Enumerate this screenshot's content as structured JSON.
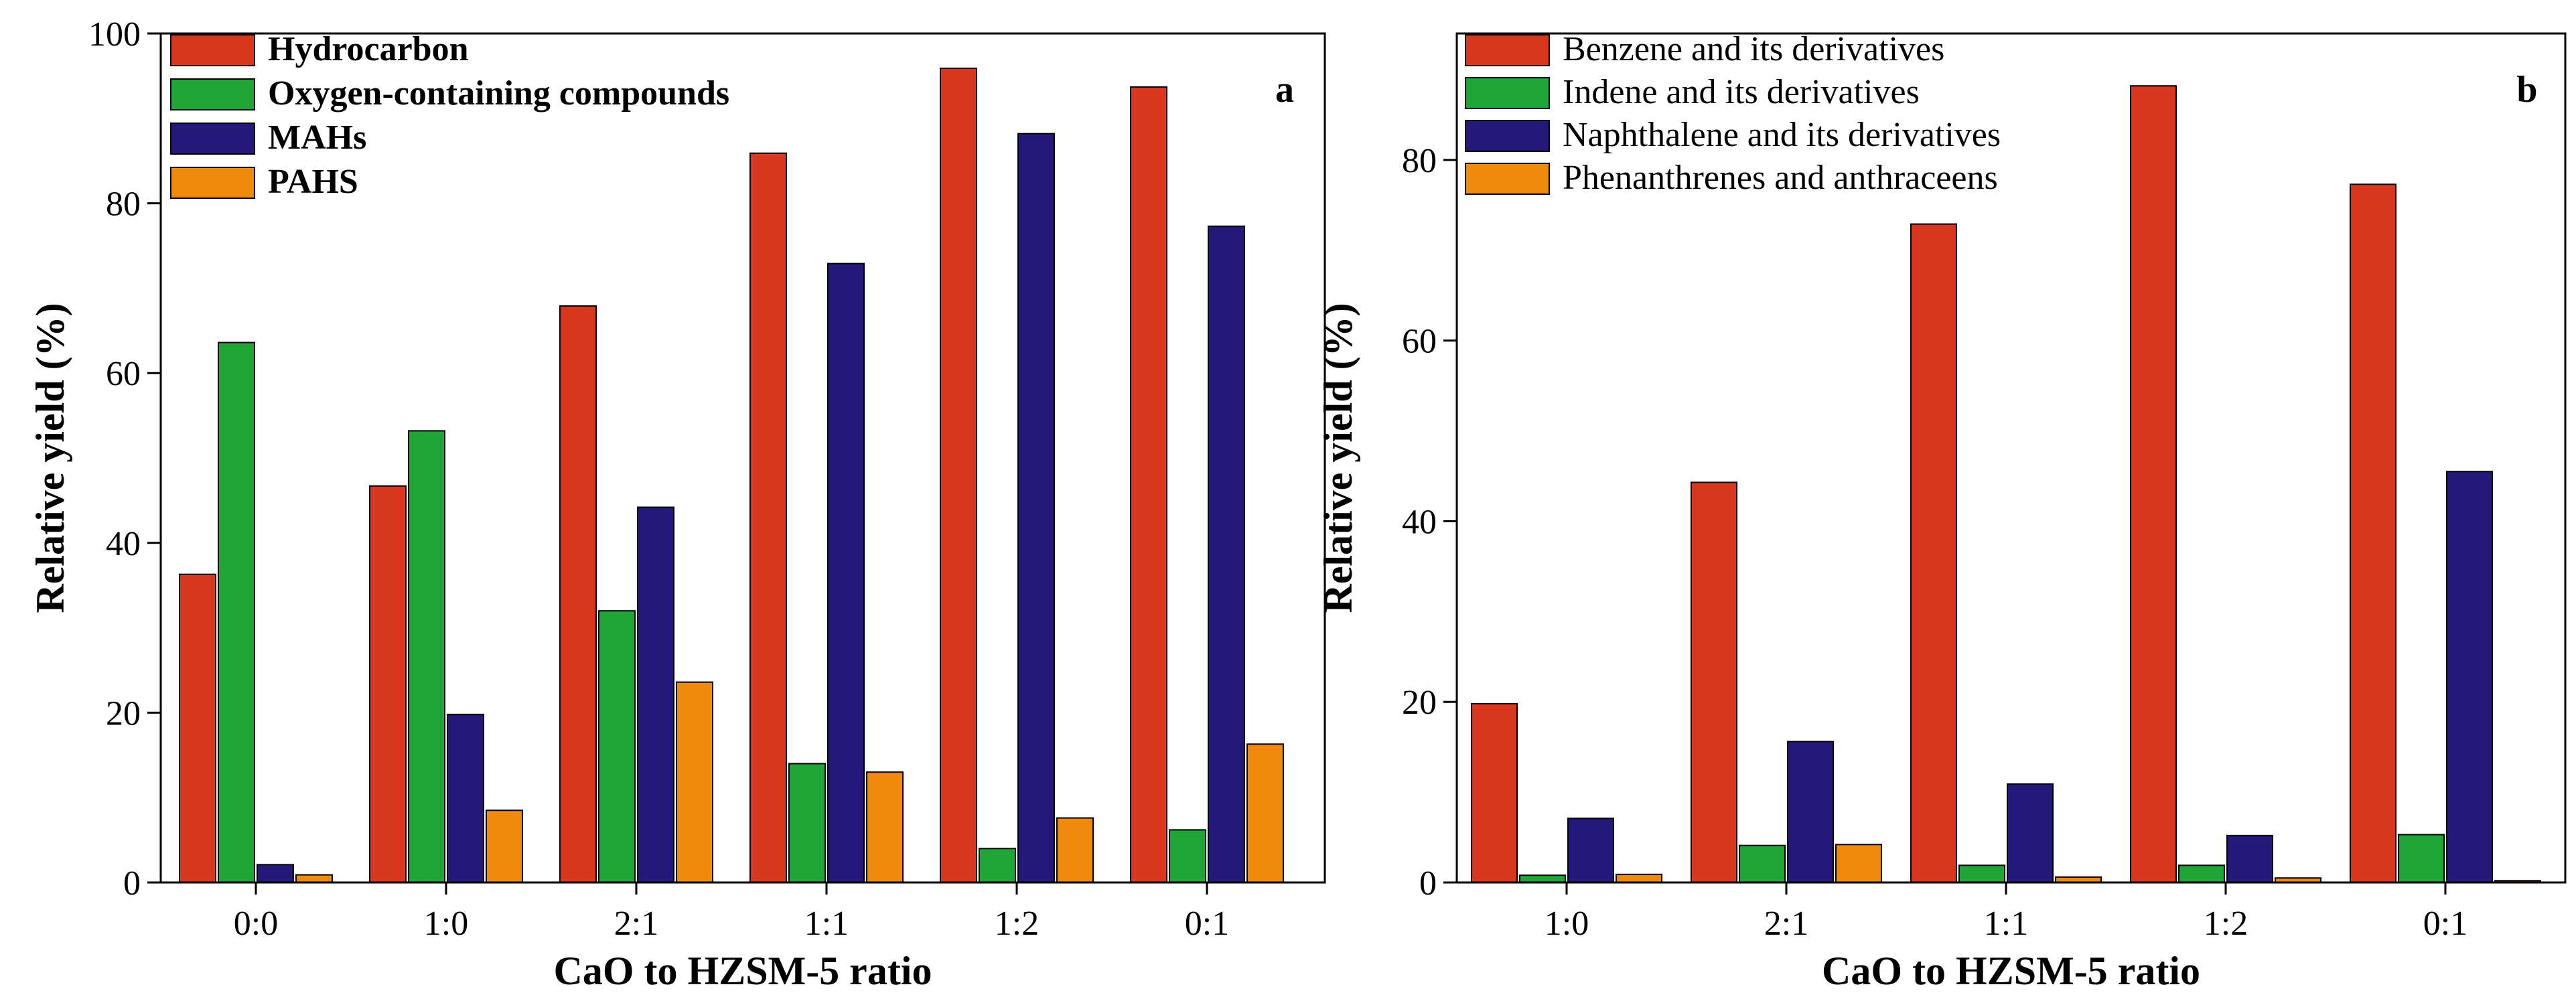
{
  "chart_data": [
    {
      "type": "bar",
      "panel": "a",
      "xlabel": "CaO to HZSM-5 ratio",
      "ylabel": "Relative yield (%)",
      "ylim": [
        0,
        100
      ],
      "yticks": [
        0,
        20,
        40,
        60,
        80,
        100
      ],
      "categories": [
        "0:0",
        "1:0",
        "2:1",
        "1:1",
        "1:2",
        "0:1"
      ],
      "series": [
        {
          "name": "Hydrocarbon",
          "color": "#d9381e",
          "values": [
            36.3,
            46.7,
            67.9,
            85.9,
            95.9,
            93.7
          ]
        },
        {
          "name": "Oxygen-containing compounds",
          "color": "#1fa637",
          "values": [
            63.6,
            53.2,
            32.0,
            14.0,
            4.0,
            6.2
          ]
        },
        {
          "name": "MAHs",
          "color": "#24197a",
          "values": [
            2.1,
            19.8,
            44.2,
            72.9,
            88.2,
            77.3
          ]
        },
        {
          "name": "PAHS",
          "color": "#f08a0c",
          "values": [
            0.9,
            8.5,
            23.6,
            13.0,
            7.6,
            16.3
          ]
        }
      ],
      "legend_position": "top-left"
    },
    {
      "type": "bar",
      "panel": "b",
      "xlabel": "CaO to HZSM-5 ratio",
      "ylabel": "Relative yield (%)",
      "ylim": [
        0,
        94
      ],
      "yticks": [
        0,
        20,
        40,
        60,
        80
      ],
      "categories": [
        "1:0",
        "2:1",
        "1:1",
        "1:2",
        "0:1"
      ],
      "series": [
        {
          "name": "Benzene and its derivatives",
          "color": "#d9381e",
          "values": [
            19.8,
            44.3,
            72.9,
            88.2,
            77.3
          ]
        },
        {
          "name": "Indene and its derivatives",
          "color": "#1fa637",
          "values": [
            0.8,
            4.1,
            1.9,
            1.9,
            5.3
          ]
        },
        {
          "name": "Naphthalene and its derivatives",
          "color": "#24197a",
          "values": [
            7.1,
            15.6,
            10.9,
            5.2,
            45.5
          ]
        },
        {
          "name": "Phenanthrenes and anthraceens",
          "color": "#f08a0c",
          "values": [
            0.9,
            4.2,
            0.6,
            0.5,
            0.2
          ]
        }
      ],
      "legend_position": "top-left"
    }
  ]
}
